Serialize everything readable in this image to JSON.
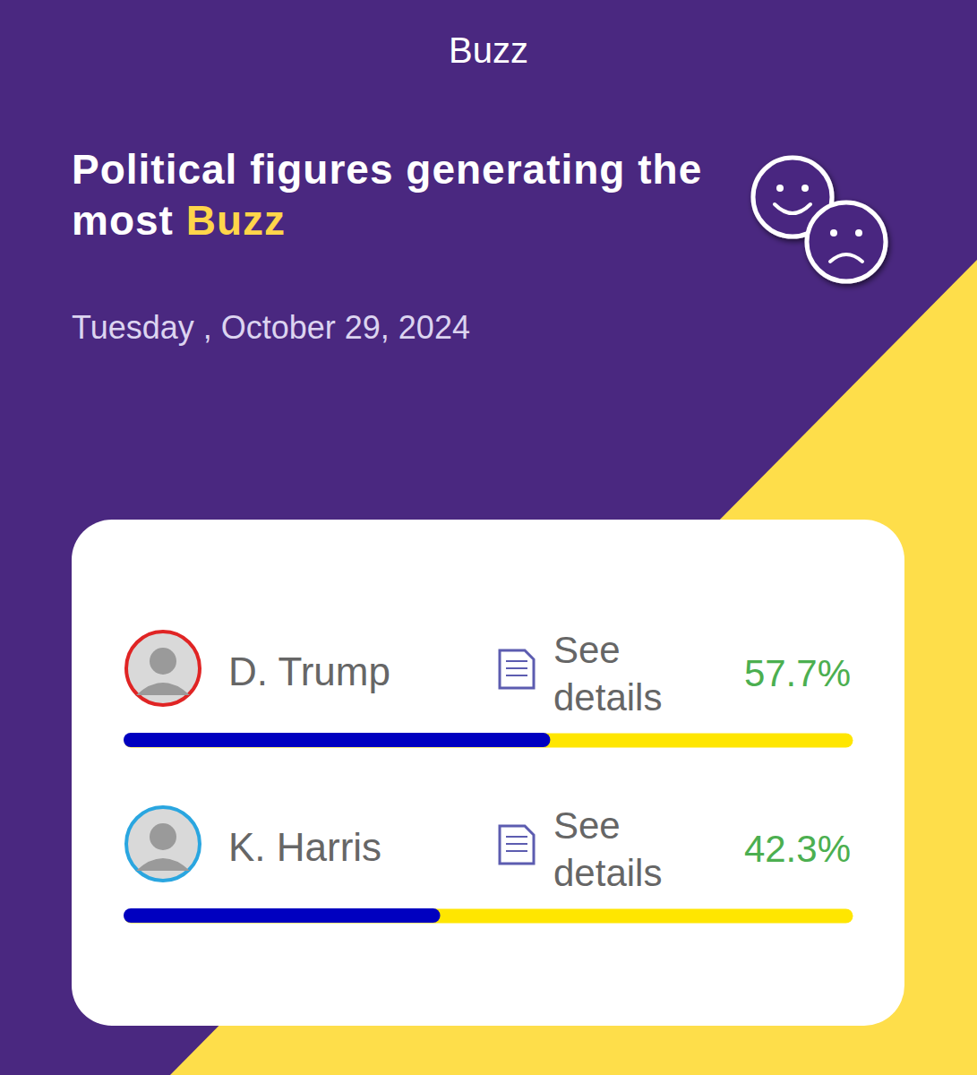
{
  "header": "Buzz",
  "chart_data": {
    "type": "bar",
    "orientation": "horizontal",
    "title": "Political figures generating the most Buzz",
    "subtitle": "Tuesday , October 29, 2024",
    "categories": [
      "D. Trump",
      "K. Harris"
    ],
    "values": [
      57.7,
      42.3
    ],
    "value_labels": [
      "57.7%",
      "42.3%"
    ],
    "data_labels": true,
    "annotations": [
      "See details",
      "See details"
    ],
    "color": "#0000c0",
    "xlim": [
      0,
      100
    ],
    "xticks": [],
    "tick_labels": false,
    "grid": false
  }
}
